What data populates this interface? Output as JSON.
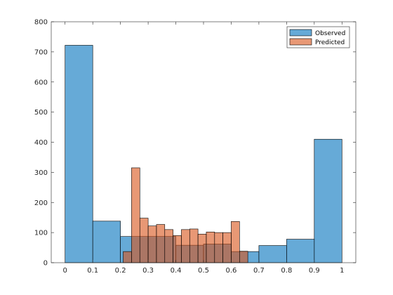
{
  "chart_data": {
    "type": "histogram",
    "xlim": [
      -0.05,
      1.05
    ],
    "ylim": [
      0,
      800
    ],
    "xticks": [
      0,
      0.1,
      0.2,
      0.3,
      0.4,
      0.5,
      0.6,
      0.7,
      0.8,
      0.9,
      1
    ],
    "yticks": [
      0,
      100,
      200,
      300,
      400,
      500,
      600,
      700,
      800
    ],
    "xtick_labels": [
      "0",
      "0.1",
      "0.2",
      "0.3",
      "0.4",
      "0.5",
      "0.6",
      "0.7",
      "0.8",
      "0.9",
      "1"
    ],
    "ytick_labels": [
      "0",
      "100",
      "200",
      "300",
      "400",
      "500",
      "600",
      "700",
      "800"
    ],
    "legend_position": "top-right",
    "series": [
      {
        "name": "Observed",
        "color": "#0072BD",
        "alpha": 0.6,
        "bin_edges": [
          0,
          0.1,
          0.2,
          0.3,
          0.4,
          0.5,
          0.6,
          0.7,
          0.8,
          0.9,
          1.0
        ],
        "counts": [
          722,
          138,
          87,
          87,
          58,
          62,
          37,
          57,
          78,
          410
        ]
      },
      {
        "name": "Predicted",
        "color": "#D95319",
        "alpha": 0.6,
        "bin_edges": [
          0.21,
          0.24,
          0.27,
          0.3,
          0.33,
          0.36,
          0.39,
          0.42,
          0.45,
          0.48,
          0.51,
          0.54,
          0.57,
          0.6,
          0.63,
          0.66
        ],
        "counts": [
          37,
          315,
          148,
          122,
          127,
          110,
          90,
          110,
          112,
          95,
          102,
          100,
          100,
          137,
          38
        ]
      }
    ]
  },
  "legend": {
    "observed_label": "Observed",
    "predicted_label": "Predicted"
  }
}
